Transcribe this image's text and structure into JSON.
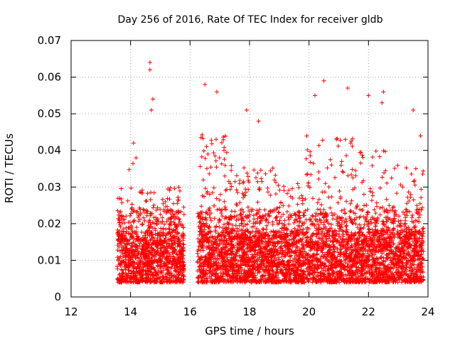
{
  "chart_data": {
    "type": "scatter",
    "title": "Day 256 of 2016, Rate Of TEC Index for receiver gldb",
    "xlabel": "GPS time / hours",
    "ylabel": "ROTI / TECUs",
    "xlim": [
      12,
      24
    ],
    "ylim": [
      0,
      0.07
    ],
    "x_ticks": [
      12,
      14,
      16,
      18,
      20,
      22,
      24
    ],
    "x_tick_labels": [
      "12",
      "14",
      "16",
      "18",
      "20",
      "22",
      "24"
    ],
    "y_ticks": [
      0,
      0.01,
      0.02,
      0.03,
      0.04,
      0.05,
      0.06,
      0.07
    ],
    "y_tick_labels": [
      "0",
      "0.01",
      "0.02",
      "0.03",
      "0.04",
      "0.05",
      "0.06",
      "0.07"
    ],
    "grid": true,
    "marker": "+",
    "color": "#ff0000",
    "series": [
      {
        "name": "ROTI",
        "data_segments": [
          {
            "x_start": 13.55,
            "x_end": 15.8
          },
          {
            "x_start": 16.25,
            "x_end": 23.85
          }
        ],
        "typical_range": [
          0.004,
          0.033
        ],
        "notable_points": [
          {
            "x": 14.65,
            "y": 0.064
          },
          {
            "x": 14.65,
            "y": 0.062
          },
          {
            "x": 14.75,
            "y": 0.054
          },
          {
            "x": 14.7,
            "y": 0.051
          },
          {
            "x": 14.1,
            "y": 0.042
          },
          {
            "x": 16.5,
            "y": 0.058
          },
          {
            "x": 16.9,
            "y": 0.056
          },
          {
            "x": 17.9,
            "y": 0.051
          },
          {
            "x": 18.3,
            "y": 0.048
          },
          {
            "x": 20.5,
            "y": 0.059
          },
          {
            "x": 20.2,
            "y": 0.055
          },
          {
            "x": 21.3,
            "y": 0.057
          },
          {
            "x": 22.0,
            "y": 0.055
          },
          {
            "x": 22.5,
            "y": 0.056
          },
          {
            "x": 22.45,
            "y": 0.053
          },
          {
            "x": 23.5,
            "y": 0.051
          },
          {
            "x": 23.75,
            "y": 0.044
          }
        ]
      }
    ]
  }
}
